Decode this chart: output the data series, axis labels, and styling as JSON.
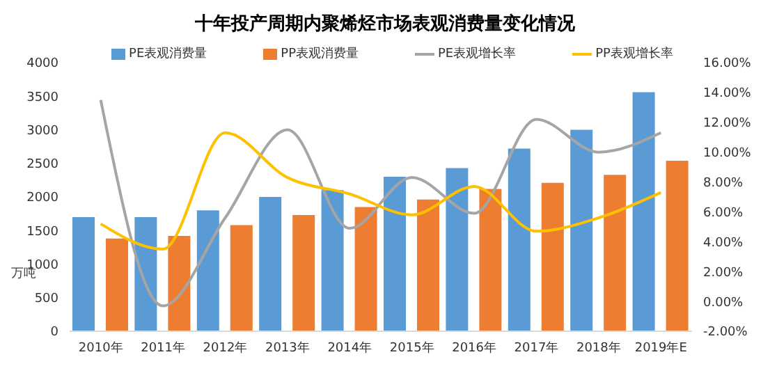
{
  "chart_data": {
    "type": "bar",
    "title": "十年投产周期内聚烯烃市场表观消费量变化情况",
    "ylabel": "万吨",
    "categories": [
      "2010年",
      "2011年",
      "2012年",
      "2013年",
      "2014年",
      "2015年",
      "2016年",
      "2017年",
      "2018年",
      "2019年E"
    ],
    "series": [
      {
        "name": "PE表观消费量",
        "color": "#5b9bd5",
        "values": [
          1700,
          1700,
          1800,
          2000,
          2100,
          2300,
          2430,
          2720,
          3000,
          3560
        ]
      },
      {
        "name": "PP表观消费量",
        "color": "#ed7d31",
        "values": [
          1380,
          1420,
          1580,
          1730,
          1850,
          1960,
          2120,
          2210,
          2330,
          2540
        ]
      },
      {
        "name": "PE表观增长率",
        "type": "line",
        "axis": "y2",
        "color": "#a5a5a5",
        "values": [
          13.5,
          -0.3,
          5.6,
          11.5,
          4.9,
          8.3,
          5.9,
          12.2,
          10.0,
          11.3
        ]
      },
      {
        "name": "PP表观增长率",
        "type": "line",
        "axis": "y2",
        "color": "#ffc000",
        "values": [
          5.2,
          3.5,
          11.3,
          8.3,
          7.2,
          5.8,
          7.7,
          4.7,
          5.6,
          7.3
        ]
      }
    ],
    "ylim": [
      0,
      4000
    ],
    "yticks": [
      0,
      500,
      1000,
      1500,
      2000,
      2500,
      3000,
      3500,
      4000
    ],
    "y2lim": [
      -2,
      16
    ],
    "y2ticks": [
      {
        "value": -2,
        "label": "-2.00%"
      },
      {
        "value": 0,
        "label": "0.00%"
      },
      {
        "value": 2,
        "label": "2.00%"
      },
      {
        "value": 4,
        "label": "4.00%"
      },
      {
        "value": 6,
        "label": "6.00%"
      },
      {
        "value": 8,
        "label": "8.00%"
      },
      {
        "value": 10,
        "label": "10.00%"
      },
      {
        "value": 12,
        "label": "12.00%"
      },
      {
        "value": 14,
        "label": "14.00%"
      },
      {
        "value": 16,
        "label": "16.00%"
      }
    ],
    "grid": false,
    "legend": "top",
    "marker": "none",
    "line_style": "solid"
  }
}
